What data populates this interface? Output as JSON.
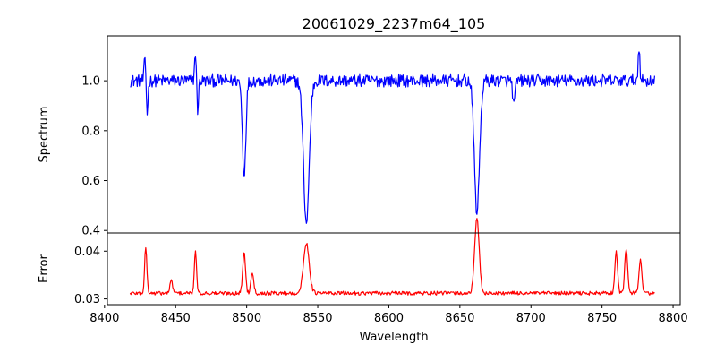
{
  "chart_data": [
    {
      "panel": "top",
      "type": "line",
      "title": "20061029_2237m64_105",
      "ylabel": "Spectrum",
      "xlabel": "",
      "xlim": [
        8402,
        8805
      ],
      "ylim": [
        0.39,
        1.18
      ],
      "yticks": [
        0.4,
        0.6,
        0.8,
        1.0
      ],
      "yticklabels": [
        "0.4",
        "0.6",
        "0.8",
        "1.0"
      ],
      "grid": false,
      "series": [
        {
          "color": "#0000ff",
          "x_range": [
            8418,
            8787
          ],
          "baseline": 1.0,
          "noise": 0.025,
          "features": [
            {
              "x": 8428.5,
              "depth": -0.09,
              "width": 0.6
            },
            {
              "x": 8430.0,
              "depth": 0.13,
              "width": 0.6
            },
            {
              "x": 8464.0,
              "depth": -0.12,
              "width": 0.6
            },
            {
              "x": 8465.5,
              "depth": 0.12,
              "width": 0.6
            },
            {
              "x": 8498.2,
              "depth": 0.376,
              "width": 1.2
            },
            {
              "x": 8542.0,
              "depth": 0.57,
              "width": 2.0
            },
            {
              "x": 8662.0,
              "depth": 0.527,
              "width": 1.8
            },
            {
              "x": 8688.0,
              "depth": 0.1,
              "width": 0.8
            },
            {
              "x": 8776.0,
              "depth": -0.14,
              "width": 0.6
            }
          ]
        }
      ]
    },
    {
      "panel": "bottom",
      "type": "line",
      "title": "",
      "ylabel": "Error",
      "xlabel": "Wavelength",
      "xlim": [
        8402,
        8805
      ],
      "ylim": [
        0.0288,
        0.0438
      ],
      "yticks": [
        0.03,
        0.04
      ],
      "yticklabels": [
        "0.03",
        "0.04"
      ],
      "xticks": [
        8400,
        8450,
        8500,
        8550,
        8600,
        8650,
        8700,
        8750,
        8800
      ],
      "xticklabels": [
        "8400",
        "8450",
        "8500",
        "8550",
        "8600",
        "8650",
        "8700",
        "8750",
        "8800"
      ],
      "grid": false,
      "series": [
        {
          "color": "#ff0000",
          "x_range": [
            8418,
            8787
          ],
          "baseline": 0.0312,
          "noise": 0.0004,
          "features": [
            {
              "x": 8429.0,
              "height": 0.0095,
              "width": 0.8
            },
            {
              "x": 8447.0,
              "height": 0.0025,
              "width": 1.0
            },
            {
              "x": 8464.0,
              "height": 0.0085,
              "width": 0.8
            },
            {
              "x": 8498.2,
              "height": 0.0085,
              "width": 1.0
            },
            {
              "x": 8504.0,
              "height": 0.0045,
              "width": 1.0
            },
            {
              "x": 8542.0,
              "height": 0.0105,
              "width": 2.0
            },
            {
              "x": 8662.0,
              "height": 0.0155,
              "width": 1.6
            },
            {
              "x": 8760.0,
              "height": 0.0085,
              "width": 1.0
            },
            {
              "x": 8767.0,
              "height": 0.0095,
              "width": 1.0
            },
            {
              "x": 8777.0,
              "height": 0.007,
              "width": 1.0
            }
          ]
        }
      ]
    }
  ]
}
